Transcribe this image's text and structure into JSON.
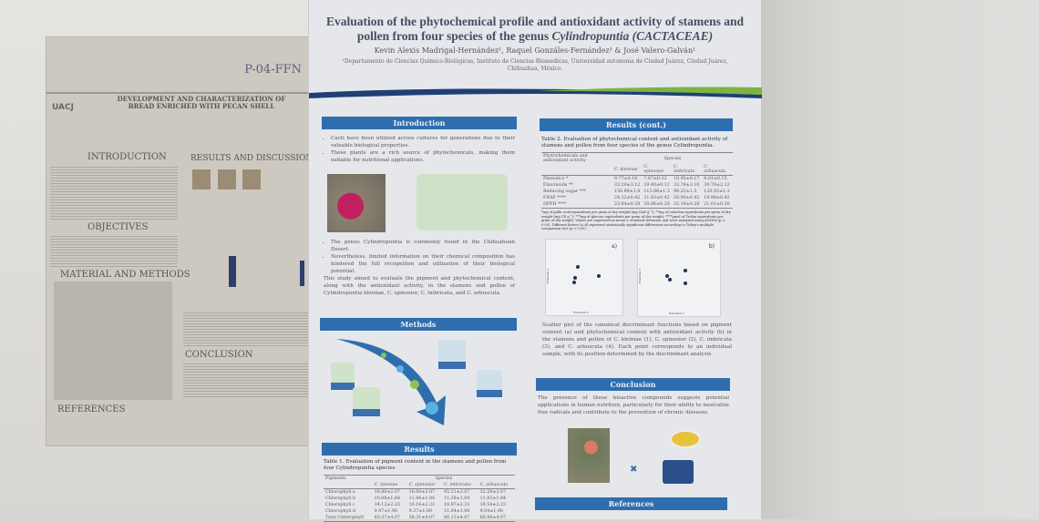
{
  "left_poster": {
    "code": "P-04-FFN",
    "logo": "UACJ",
    "title": "DEVELOPMENT AND CHARACTERIZATION OF BREAD ENRICHED WITH PECAN SHELL",
    "sections": [
      "INTRODUCTION",
      "RESULTS AND DISCUSSION",
      "OBJECTIVES",
      "MATERIAL AND METHODS",
      "CONCLUSION",
      "REFERENCES"
    ]
  },
  "main_poster": {
    "title": "Evaluation of the phytochemical profile and antioxidant activity of stamens and pollen from four species of the genus",
    "title_italic": "Cylindropuntia (CACTACEAE)",
    "authors": "Kevin Alexis Madrigal-Hernández¹, Raquel Gonzáles-Fernández¹ & José Valero-Galván¹",
    "affiliation": "¹Departamento de Ciencias Químico-Biológicas, Instituto de Ciencias Biomedicas, Universidad autonoma de Ciudad Juárez, Ciudad Juárez, Chihuahua, México.",
    "colors": {
      "header_blue": "#2f6eae",
      "wave_green": "#7cb342",
      "wave_navy": "#1f3f74"
    },
    "introduction": {
      "heading": "Introduction",
      "bullets1": [
        "Cacti have been utilized across cultures for generations due to their valuable biological properties.",
        "These plants are a rich source of phytochemicals, making them suitable for nutritional applications."
      ],
      "bullets2": [
        "The genus Cylindropuntia is commonly found in the Chihuahuan Desert.",
        "Nevertheless, limited information on their chemical composition has hindered the full recognition and utilization of their biological potential."
      ],
      "aim": "This study aimed to evaluate the pigment and phytochemical content, along with the antioxidant activity, in the stamens and pollen of Cylindropuntia kleiniae, C. spinosior, C. imbricata, and C. arbuscula."
    },
    "methods": {
      "heading": "Methods"
    },
    "results": {
      "heading": "Results",
      "table1": {
        "caption": "Table 1. Evaluation of pigment content in the stamens and pollen from four Cylindropuntia species",
        "row_header": "Pigments",
        "group_header": "Species",
        "columns": [
          "C. kleiniae",
          "C. spinosior",
          "C. imbricata",
          "C. arbuscula"
        ],
        "rows": [
          [
            "Chlorophyll a",
            "18.86±2.07",
            "18.60±2.07",
            "45.21±2.07",
            "32.29±2.07"
          ],
          [
            "Chlorophyll b",
            "10.08±1.64",
            "11.86±1.84",
            "11.28±1.84",
            "11.83±1.84"
          ],
          [
            "Chlorophyll c",
            "34.12±2.23",
            "18.16±2.23",
            "18.97±2.23",
            "19.54±2.23"
          ],
          [
            "Chlorophyll d",
            "9.47±1.90",
            "9.37±1.90",
            "11.04±1.90",
            "9.04±1.90"
          ],
          [
            "Total Chlorophyll",
            "60.37±4.07",
            "58.31±4.07",
            "80.11±4.07",
            "66.88±4.07"
          ]
        ]
      }
    },
    "results_cont": {
      "heading": "Results (cont.)",
      "table2": {
        "caption": "Table 2. Evaluation of phytochemical content and antioxidant activity of stamens and pollen from four species of the genus Cylindropuntia.",
        "row_header": "Phytochemicals and antioxidant activity",
        "group_header": "Species",
        "columns": [
          "C. kleiniae",
          "C. spinosior",
          "C. imbricata",
          "C. arbuscula"
        ],
        "rows": [
          [
            "Phenolics *",
            "9.77±0.16",
            "7.87±0.12",
            "10.95±0.17",
            "8.81±0.15"
          ],
          [
            "Flavonoids **",
            "33.29±3.12",
            "29.40±0.12",
            "33.78±3.10",
            "39.78±2.12"
          ],
          [
            "Reducing sugar ***",
            "130.89±1.8",
            "113.86±1.3",
            "98.22±1.5",
            "120.02±1.3"
          ],
          [
            "FRAP ****",
            "24.32±0.42",
            "21.63±0.42",
            "28.00±0.42",
            "19.98±0.42"
          ],
          [
            "DPPH ****",
            "23.84±0.28",
            "30.06±0.28",
            "25.18±0.28",
            "21.01±0.20"
          ]
        ],
        "footnote": "*mg of gallic acid equivalents per gram of dry weight (mg GAE g⁻¹); **mg of catechin equivalents per gram of dry weight (mg CE g⁻¹); ***mg of glucose equivalents per gram of dry weight; ****µmol of Trolox equivalents per gram of dry weight. Values are expressed as mean ± standard deviation and were analyzed using ANOVA (p < 0.05). Different letters (a–d) represent statistically significant differences according to Tukey's multiple comparison test (p < 0.05)."
      },
      "plots": [
        {
          "label": "a)",
          "xlabel": "Function 1",
          "ylabel": "Function 2"
        },
        {
          "label": "b)",
          "xlabel": "Function 1",
          "ylabel": "Function 2"
        }
      ],
      "plot_caption": "Scatter plot of the canonical discriminant functions based on pigment content (a) and phytochemical content with antioxidant activity (b) in the stamens and pollen of C. kleiniae (1), C. spinosior (2), C. imbricata (3), and C. arbuscula (4). Each point corresponds to an individual sample, with its position determined by the discriminant analysis."
    },
    "conclusion": {
      "heading": "Conclusion",
      "text": "The presence of these bioactive compounds suggests potential applications in human nutrition, particularly for their ability to neutralize free radicals and contribute to the prevention of chronic diseases."
    },
    "references": {
      "heading": "References"
    }
  }
}
